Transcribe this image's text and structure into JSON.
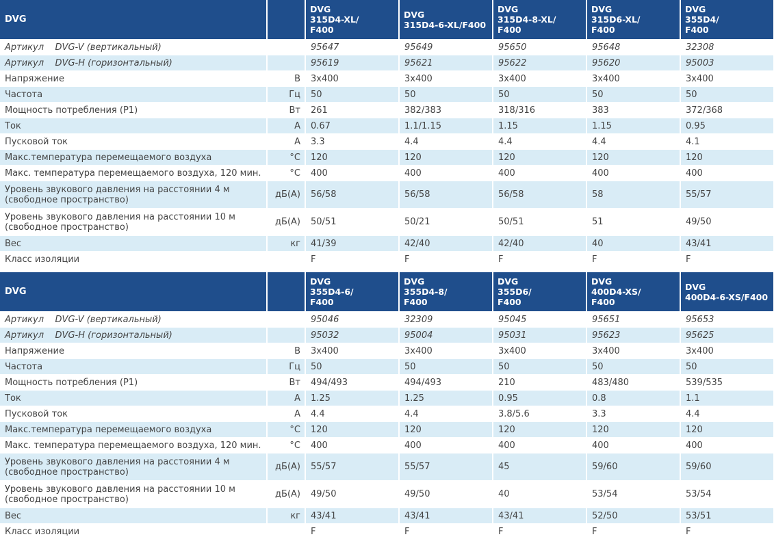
{
  "tables": [
    {
      "brand": "DVG",
      "models": [
        "DVG\n315D4-XL/\nF400",
        "DVG\n315D4-6-XL/F400",
        "DVG\n315D4-8-XL/\nF400",
        "DVG\n315D6-XL/\nF400",
        "DVG\n355D4/\nF400"
      ],
      "rows": [
        {
          "label": "Артикул    DVG-V (вертикальный)",
          "unit": "",
          "values": [
            "95647",
            "95649",
            "95650",
            "95648",
            "32308"
          ],
          "italic": true
        },
        {
          "label": "Артикул    DVG-H (горизонтальный)",
          "unit": "",
          "values": [
            "95619",
            "95621",
            "95622",
            "95620",
            "95003"
          ],
          "italic": true
        },
        {
          "label": "Напряжение",
          "unit": "В",
          "values": [
            "3x400",
            "3x400",
            "3x400",
            "3x400",
            "3x400"
          ]
        },
        {
          "label": "Частота",
          "unit": "Гц",
          "values": [
            "50",
            "50",
            "50",
            "50",
            "50"
          ]
        },
        {
          "label": "Мощность потребления (P1)",
          "unit": "Вт",
          "values": [
            "261",
            "382/383",
            "318/316",
            "383",
            "372/368"
          ]
        },
        {
          "label": "Ток",
          "unit": "A",
          "values": [
            "0.67",
            "1.1/1.15",
            "1.15",
            "1.15",
            "0.95"
          ]
        },
        {
          "label": "Пусковой ток",
          "unit": "A",
          "values": [
            "3.3",
            "4.4",
            "4.4",
            "4.4",
            "4.1"
          ]
        },
        {
          "label": "Макс.температура перемещаемого воздуха",
          "unit": "°C",
          "values": [
            "120",
            "120",
            "120",
            "120",
            "120"
          ]
        },
        {
          "label": "Макс. температура перемещаемого воздуха, 120 мин.",
          "unit": "°C",
          "values": [
            "400",
            "400",
            "400",
            "400",
            "400"
          ]
        },
        {
          "label": "Уровень звукового давления на расстоянии 4 м\n(свободное пространство)",
          "unit": "дБ(A)",
          "values": [
            "56/58",
            "56/58",
            "56/58",
            "58",
            "55/57"
          ],
          "tall": true
        },
        {
          "label": "Уровень звукового давления на расстоянии 10 м\n(свободное пространство)",
          "unit": "дБ(A)",
          "values": [
            "50/51",
            "50/21",
            "50/51",
            "51",
            "49/50"
          ],
          "tall": true
        },
        {
          "label": "Вес",
          "unit": "кг",
          "values": [
            "41/39",
            "42/40",
            "42/40",
            "40",
            "43/41"
          ]
        },
        {
          "label": "Класс изоляции",
          "unit": "",
          "values": [
            "F",
            "F",
            "F",
            "F",
            "F"
          ]
        }
      ]
    },
    {
      "brand": "DVG",
      "models": [
        "DVG\n355D4-6/\nF400",
        "DVG\n355D4-8/\nF400",
        "DVG\n355D6/\nF400",
        "DVG\n400D4-XS/\nF400",
        "DVG\n400D4-6-XS/F400"
      ],
      "rows": [
        {
          "label": "Артикул    DVG-V (вертикальный)",
          "unit": "",
          "values": [
            "95046",
            "32309",
            "95045",
            "95651",
            "95653"
          ],
          "italic": true
        },
        {
          "label": "Артикул    DVG-H (горизонтальный)",
          "unit": "",
          "values": [
            "95032",
            "95004",
            "95031",
            "95623",
            "95625"
          ],
          "italic": true
        },
        {
          "label": "Напряжение",
          "unit": "В",
          "values": [
            "3x400",
            "3x400",
            "3x400",
            "3x400",
            "3x400"
          ]
        },
        {
          "label": "Частота",
          "unit": "Гц",
          "values": [
            "50",
            "50",
            "50",
            "50",
            "50"
          ]
        },
        {
          "label": "Мощность потребления (P1)",
          "unit": "Вт",
          "values": [
            "494/493",
            "494/493",
            "210",
            "483/480",
            "539/535"
          ]
        },
        {
          "label": "Ток",
          "unit": "A",
          "values": [
            "1.25",
            "1.25",
            "0.95",
            "0.8",
            "1.1"
          ]
        },
        {
          "label": "Пусковой ток",
          "unit": "A",
          "values": [
            "4.4",
            "4.4",
            "3.8/5.6",
            "3.3",
            "4.4"
          ]
        },
        {
          "label": "Макс.температура перемещаемого воздуха",
          "unit": "°C",
          "values": [
            "120",
            "120",
            "120",
            "120",
            "120"
          ]
        },
        {
          "label": "Макс. температура перемещаемого воздуха, 120 мин.",
          "unit": "°C",
          "values": [
            "400",
            "400",
            "400",
            "400",
            "400"
          ]
        },
        {
          "label": "Уровень звукового давления на расстоянии 4 м\n(свободное пространство)",
          "unit": "дБ(A)",
          "values": [
            "55/57",
            "55/57",
            "45",
            "59/60",
            "59/60"
          ],
          "tall": true
        },
        {
          "label": "Уровень звукового давления на расстоянии 10 м\n(свободное пространство)",
          "unit": "дБ(A)",
          "values": [
            "49/50",
            "49/50",
            "40",
            "53/54",
            "53/54"
          ],
          "tall": true
        },
        {
          "label": "Вес",
          "unit": "кг",
          "values": [
            "43/41",
            "43/41",
            "43/41",
            "52/50",
            "53/51"
          ]
        },
        {
          "label": "Класс изоляции",
          "unit": "",
          "values": [
            "F",
            "F",
            "F",
            "F",
            "F"
          ]
        }
      ]
    }
  ],
  "colors": {
    "header_bg": "#1f4e8c",
    "stripe_bg": "#d9ecf6"
  }
}
